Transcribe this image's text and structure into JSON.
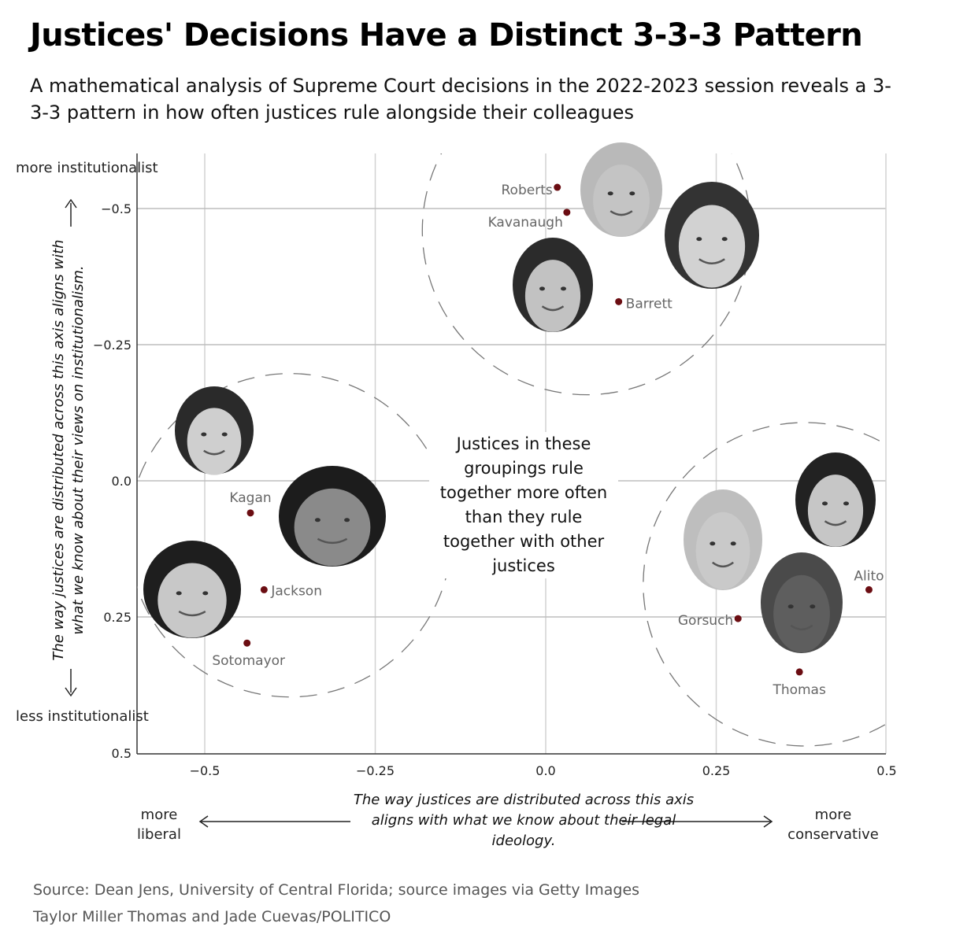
{
  "header": {
    "title": "Justices' Decisions Have a Distinct 3-3-3 Pattern",
    "subtitle": "A mathematical analysis of Supreme Court decisions in the 2022-2023 session reveals a 3-3-3 pattern in how often justices rule alongside their colleagues"
  },
  "chart_data": {
    "type": "scatter",
    "x": [
      -0.433,
      -0.413,
      -0.438,
      0.017,
      0.031,
      0.107,
      0.282,
      0.372,
      0.474
    ],
    "y": [
      0.059,
      0.2,
      0.298,
      -0.539,
      -0.493,
      -0.329,
      0.253,
      0.351,
      0.2
    ],
    "labels": [
      "Kagan",
      "Jackson",
      "Sotomayor",
      "Roberts",
      "Kavanaugh",
      "Barrett",
      "Gorsuch",
      "Thomas",
      "Alito"
    ],
    "xlim": [
      -0.6,
      0.5
    ],
    "ylim": [
      -0.6,
      0.5
    ],
    "y_axis_inverted": true,
    "x_ticks": [
      "−0.5",
      "−0.25",
      "0.0",
      "0.25",
      "0.5"
    ],
    "x_tick_values": [
      -0.5,
      -0.25,
      0,
      0.25,
      0.5
    ],
    "y_ticks": [
      "−0.5",
      "−0.25",
      "0.0",
      "0.25",
      "0.5"
    ],
    "y_tick_values": [
      -0.5,
      -0.25,
      0,
      0.25,
      0.5
    ],
    "grid": true,
    "groups": [
      {
        "members": [
          "Kagan",
          "Jackson",
          "Sotomayor"
        ],
        "center": [
          -0.375,
          0.1
        ],
        "radius": 0.3
      },
      {
        "members": [
          "Roberts",
          "Kavanaugh",
          "Barrett"
        ],
        "center": [
          0.06,
          -0.46
        ],
        "radius": 0.305
      },
      {
        "members": [
          "Gorsuch",
          "Thomas",
          "Alito"
        ],
        "center": [
          0.38,
          0.19
        ],
        "radius": 0.3
      }
    ],
    "xlabel": "The way justices are distributed across this axis aligns with what we know about their legal ideology.",
    "ylabel": "The way justices are distributed across this axis aligns with what we know about their views on institutionalism.",
    "x_left_end": "more liberal",
    "x_right_end": "more conservative",
    "y_top_end": "more institutionalist",
    "y_bottom_end": "less institutionalist",
    "annotation": "Justices in these groupings rule together more often than they rule together with other justices"
  },
  "colors": {
    "point": "#6b0d12",
    "grid": "#d2d2d2",
    "axis": "#333333",
    "label": "#666666"
  },
  "footer": {
    "source": "Source: Dean Jens, University of Central Florida; source images via Getty Images",
    "credit": "Taylor Miller Thomas and Jade Cuevas/POLITICO"
  }
}
